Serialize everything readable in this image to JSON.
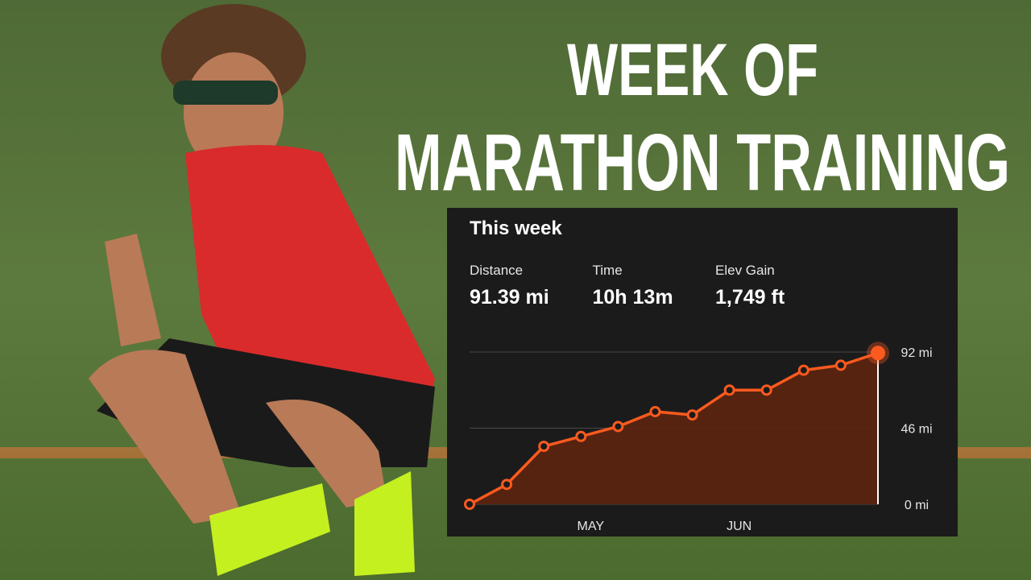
{
  "headline": [
    "WEEK OF",
    "MARATHON TRAINING"
  ],
  "panel_title": "This week",
  "stats": [
    {
      "label": "Distance",
      "value": "91.39 mi"
    },
    {
      "label": "Time",
      "value": "10h 13m"
    },
    {
      "label": "Elev Gain",
      "value": "1,749 ft"
    }
  ],
  "chart_data": {
    "type": "area",
    "categories": [
      null,
      null,
      null,
      "MAY",
      null,
      null,
      null,
      "JUN",
      null,
      null,
      null,
      null
    ],
    "values": [
      0,
      12,
      35,
      41,
      47,
      56,
      54,
      69,
      69,
      81,
      84,
      91.39
    ],
    "color": "#fc5a1f",
    "ylim": [
      0,
      92
    ],
    "yticks": [
      {
        "value": 0,
        "label": "0 mi"
      },
      {
        "value": 46,
        "label": "46 mi"
      },
      {
        "value": 92,
        "label": "92 mi"
      }
    ],
    "grid": true
  }
}
